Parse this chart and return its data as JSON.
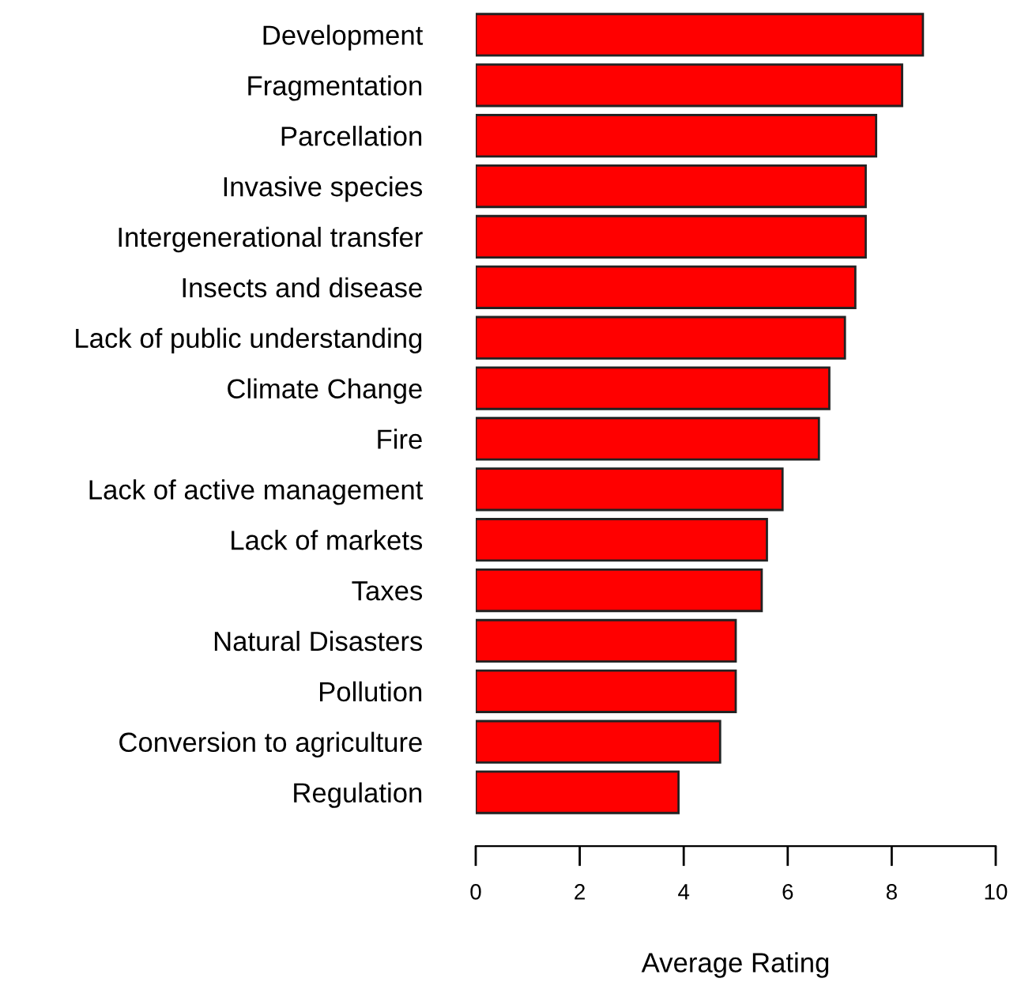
{
  "chart_data": {
    "type": "bar",
    "orientation": "horizontal",
    "xlabel": "Average Rating",
    "categories": [
      "Development",
      "Fragmentation",
      "Parcellation",
      "Invasive species",
      "Intergenerational transfer",
      "Insects and disease",
      "Lack of public understanding",
      "Climate Change",
      "Fire",
      "Lack of active management",
      "Lack of markets",
      "Taxes",
      "Natural Disasters",
      "Pollution",
      "Conversion to agriculture",
      "Regulation"
    ],
    "values": [
      8.6,
      8.2,
      7.7,
      7.5,
      7.5,
      7.3,
      7.1,
      6.8,
      6.6,
      5.9,
      5.6,
      5.5,
      5.0,
      5.0,
      4.7,
      3.9
    ],
    "color": "#ff0000",
    "xlim": [
      0,
      10
    ],
    "xticks": [
      0,
      2,
      4,
      6,
      8,
      10
    ],
    "grid": false,
    "legend": false
  }
}
